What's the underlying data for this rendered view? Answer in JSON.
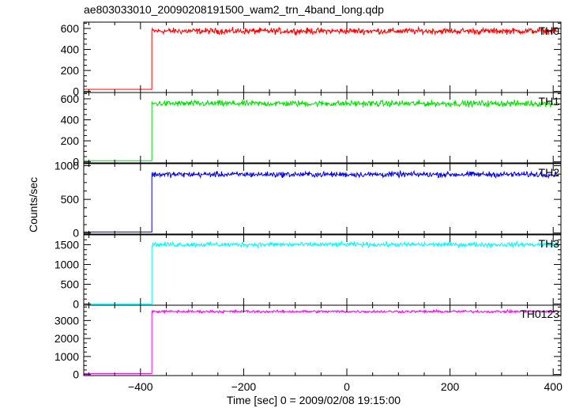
{
  "chart_data": {
    "type": "line",
    "title": "ae803033010_20090208191500_wam2_trn_4band_long.qdp",
    "xlabel": "Time [sec] 0 = 2009/02/08 19:15:00",
    "ylabel": "Counts/sec",
    "xlim": [
      -510,
      415
    ],
    "x_ticks": [
      -400,
      -200,
      0,
      200,
      400
    ],
    "x_tick_labels": [
      "−400",
      "−200",
      "0",
      "200",
      "400"
    ],
    "onset_time": -378,
    "grid": false,
    "series": [
      {
        "name": "TH0",
        "color": "#ff0000",
        "ylim": [
          -10,
          660
        ],
        "y_ticks": [
          0,
          200,
          400,
          600
        ],
        "y_tick_labels": [
          "0",
          "200",
          "400",
          "600"
        ],
        "pre_level": 20,
        "level": 575,
        "noise": 25,
        "segments": [
          {
            "x": [
              -510,
              -378
            ],
            "y": [
              20,
              20
            ]
          },
          {
            "x": [
              -378,
              410
            ],
            "y": [
              575,
              575
            ]
          }
        ]
      },
      {
        "name": "TH1",
        "color": "#00e000",
        "ylim": [
          -10,
          660
        ],
        "y_ticks": [
          0,
          200,
          400,
          600
        ],
        "y_tick_labels": [
          "0",
          "200",
          "400",
          "600"
        ],
        "pre_level": 10,
        "level": 555,
        "noise": 25,
        "segments": [
          {
            "x": [
              -510,
              -378
            ],
            "y": [
              10,
              10
            ]
          },
          {
            "x": [
              -378,
              410
            ],
            "y": [
              555,
              555
            ]
          }
        ]
      },
      {
        "name": "TH2",
        "color": "#0000e0",
        "ylim": [
          -15,
          1030
        ],
        "y_ticks": [
          0,
          500,
          1000
        ],
        "y_tick_labels": [
          "0",
          "500",
          "1000"
        ],
        "pre_level": 15,
        "level": 870,
        "noise": 35,
        "segments": [
          {
            "x": [
              -510,
              -378
            ],
            "y": [
              15,
              15
            ]
          },
          {
            "x": [
              -378,
              410
            ],
            "y": [
              870,
              870
            ]
          }
        ]
      },
      {
        "name": "TH3",
        "color": "#00ffff",
        "ylim": [
          -30,
          1750
        ],
        "y_ticks": [
          0,
          500,
          1000,
          1500
        ],
        "y_tick_labels": [
          "0",
          "500",
          "1000",
          "1500"
        ],
        "pre_level": 0,
        "level": 1505,
        "noise": 50,
        "segments": [
          {
            "x": [
              -510,
              -378
            ],
            "y": [
              0,
              0
            ]
          },
          {
            "x": [
              -378,
              410
            ],
            "y": [
              1505,
              1505
            ]
          }
        ]
      },
      {
        "name": "TH0123",
        "color": "#ff00ff",
        "ylim": [
          -60,
          3850
        ],
        "y_ticks": [
          0,
          1000,
          2000,
          3000
        ],
        "y_tick_labels": [
          "0",
          "1000",
          "2000",
          "3000"
        ],
        "pre_level": 50,
        "level": 3500,
        "noise": 60,
        "segments": [
          {
            "x": [
              -510,
              -378
            ],
            "y": [
              50,
              50
            ]
          },
          {
            "x": [
              -378,
              410
            ],
            "y": [
              3500,
              3500
            ]
          }
        ]
      }
    ]
  }
}
